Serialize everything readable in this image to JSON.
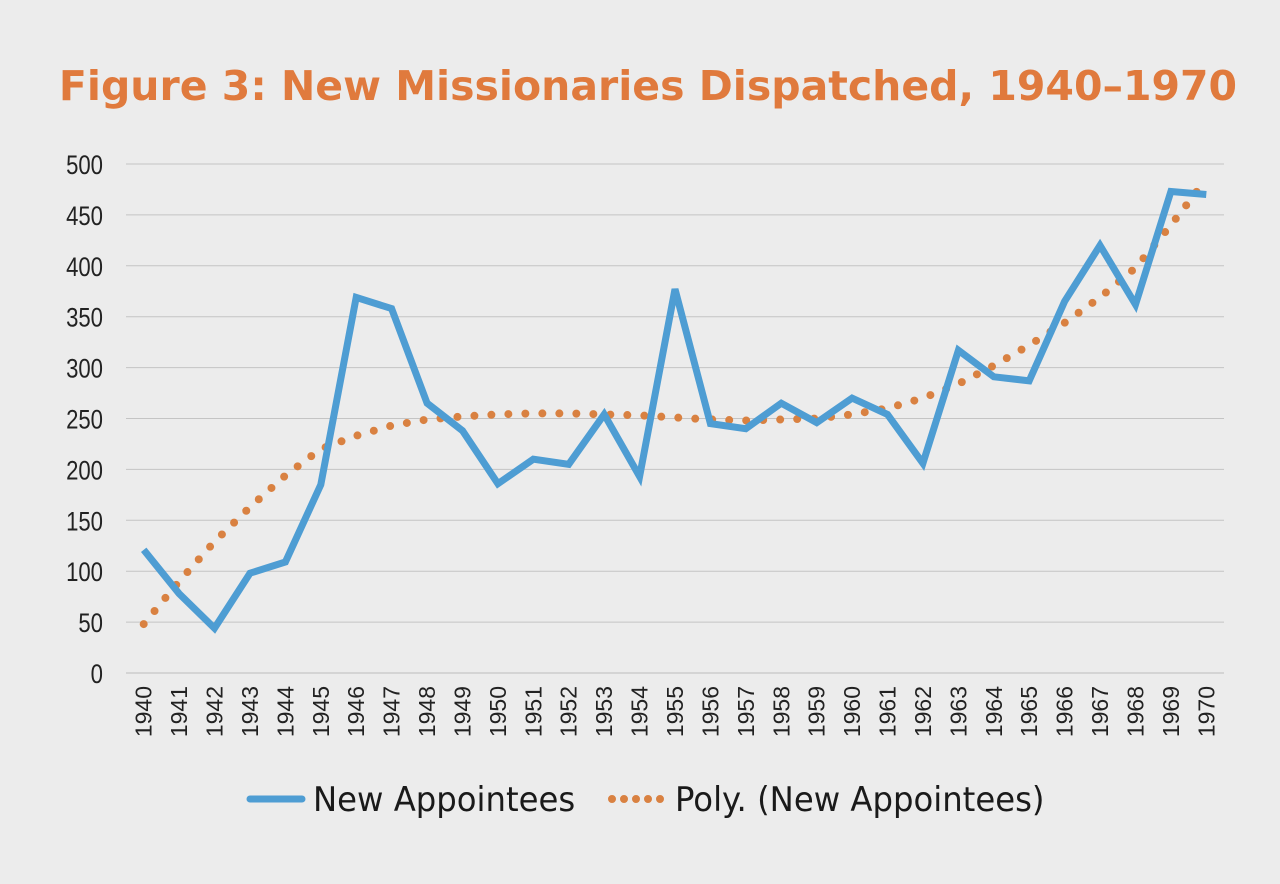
{
  "chart_data": {
    "type": "line",
    "title": "Figure 3: New Missionaries Dispatched, 1940–1970",
    "xlabel": "",
    "ylabel": "",
    "ylim": [
      0,
      500
    ],
    "yticks": [
      0,
      50,
      100,
      150,
      200,
      250,
      300,
      350,
      400,
      450,
      500
    ],
    "grid": true,
    "legend_position": "bottom",
    "categories": [
      "1940",
      "1941",
      "1942",
      "1943",
      "1944",
      "1945",
      "1946",
      "1947",
      "1948",
      "1949",
      "1950",
      "1951",
      "1952",
      "1953",
      "1954",
      "1955",
      "1956",
      "1957",
      "1958",
      "1959",
      "1960",
      "1961",
      "1962",
      "1963",
      "1964",
      "1965",
      "1966",
      "1967",
      "1968",
      "1969",
      "1970"
    ],
    "series": [
      {
        "name": "New Appointees",
        "color": "#4e9dd3",
        "style": "solid",
        "values": [
          121,
          78,
          44,
          98,
          109,
          185,
          369,
          358,
          265,
          238,
          186,
          210,
          205,
          254,
          193,
          377,
          245,
          240,
          265,
          246,
          270,
          254,
          206,
          317,
          291,
          287,
          365,
          420,
          362,
          473,
          470
        ]
      },
      {
        "name": "Poly. (New Appointees)",
        "color": "#d98141",
        "style": "dotted",
        "values": [
          48,
          90,
          129,
          163,
          194,
          220,
          233,
          243,
          249,
          252,
          254,
          255,
          255,
          254,
          253,
          251,
          249,
          248,
          249,
          250,
          254,
          260,
          270,
          284,
          302,
          322,
          344,
          369,
          398,
          440,
          485
        ]
      }
    ]
  }
}
